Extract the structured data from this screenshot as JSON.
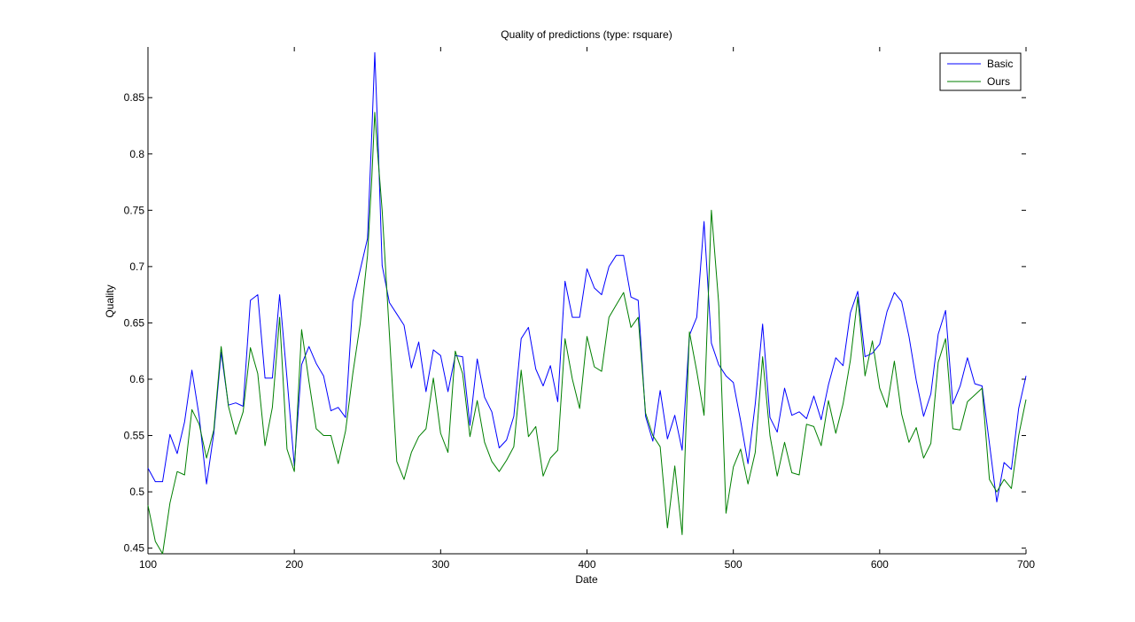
{
  "chart_data": {
    "type": "line",
    "title": "Quality of predictions (type: rsquare)",
    "xlabel": "Date",
    "ylabel": "Quality",
    "xlim": [
      100,
      700
    ],
    "ylim": [
      0.445,
      0.895
    ],
    "xticks": [
      100,
      200,
      300,
      400,
      500,
      600,
      700
    ],
    "xtick_labels": [
      "100",
      "200",
      "300",
      "400",
      "500",
      "600",
      "700"
    ],
    "yticks": [
      0.45,
      0.5,
      0.55,
      0.6,
      0.65,
      0.7,
      0.75,
      0.8,
      0.85
    ],
    "ytick_labels": [
      "0.45",
      "0.5",
      "0.55",
      "0.6",
      "0.65",
      "0.7",
      "0.75",
      "0.8",
      "0.85"
    ],
    "grid": false,
    "legend_position": "top-right",
    "x": [
      100,
      105,
      110,
      115,
      120,
      125,
      130,
      135,
      140,
      145,
      150,
      155,
      160,
      165,
      170,
      175,
      180,
      185,
      190,
      195,
      200,
      205,
      210,
      215,
      220,
      225,
      230,
      235,
      240,
      245,
      250,
      253,
      255,
      257,
      260,
      265,
      270,
      275,
      280,
      285,
      290,
      295,
      300,
      305,
      310,
      315,
      320,
      325,
      330,
      335,
      340,
      345,
      350,
      355,
      360,
      365,
      370,
      375,
      380,
      385,
      390,
      395,
      400,
      405,
      410,
      415,
      420,
      425,
      430,
      435,
      440,
      445,
      450,
      455,
      460,
      465,
      470,
      475,
      480,
      485,
      490,
      495,
      500,
      505,
      510,
      515,
      520,
      525,
      530,
      535,
      540,
      545,
      550,
      555,
      560,
      565,
      570,
      575,
      580,
      585,
      590,
      595,
      600,
      605,
      610,
      615,
      620,
      625,
      630,
      635,
      640,
      645,
      650,
      655,
      660,
      665,
      670,
      675,
      680,
      685,
      690,
      695,
      700
    ],
    "series": [
      {
        "name": "Basic",
        "color": "#0000ff",
        "values": [
          0.521,
          0.509,
          0.509,
          0.551,
          0.534,
          0.562,
          0.608,
          0.567,
          0.507,
          0.552,
          0.624,
          0.577,
          0.579,
          0.576,
          0.67,
          0.675,
          0.601,
          0.601,
          0.675,
          0.601,
          0.523,
          0.613,
          0.629,
          0.614,
          0.603,
          0.572,
          0.575,
          0.566,
          0.669,
          0.697,
          0.725,
          0.82,
          0.89,
          0.82,
          0.701,
          0.668,
          0.658,
          0.648,
          0.61,
          0.633,
          0.589,
          0.626,
          0.621,
          0.589,
          0.621,
          0.62,
          0.559,
          0.618,
          0.584,
          0.571,
          0.539,
          0.546,
          0.567,
          0.636,
          0.646,
          0.609,
          0.594,
          0.612,
          0.58,
          0.687,
          0.655,
          0.655,
          0.698,
          0.681,
          0.675,
          0.7,
          0.71,
          0.71,
          0.673,
          0.67,
          0.567,
          0.545,
          0.59,
          0.547,
          0.568,
          0.537,
          0.639,
          0.655,
          0.74,
          0.632,
          0.613,
          0.603,
          0.597,
          0.563,
          0.525,
          0.578,
          0.649,
          0.566,
          0.553,
          0.592,
          0.568,
          0.571,
          0.565,
          0.585,
          0.564,
          0.595,
          0.619,
          0.612,
          0.659,
          0.678,
          0.62,
          0.623,
          0.631,
          0.66,
          0.677,
          0.669,
          0.638,
          0.599,
          0.567,
          0.587,
          0.64,
          0.661,
          0.578,
          0.594,
          0.619,
          0.596,
          0.594,
          0.543,
          0.491,
          0.526,
          0.52,
          0.574,
          0.603
        ]
      },
      {
        "name": "Ours",
        "color": "#007f00",
        "values": [
          0.488,
          0.456,
          0.445,
          0.49,
          0.518,
          0.515,
          0.573,
          0.56,
          0.53,
          0.555,
          0.629,
          0.576,
          0.551,
          0.571,
          0.628,
          0.605,
          0.541,
          0.575,
          0.655,
          0.538,
          0.518,
          0.644,
          0.598,
          0.556,
          0.55,
          0.55,
          0.525,
          0.554,
          0.605,
          0.649,
          0.71,
          0.78,
          0.837,
          0.8,
          0.75,
          0.64,
          0.527,
          0.511,
          0.535,
          0.549,
          0.556,
          0.601,
          0.552,
          0.535,
          0.625,
          0.605,
          0.549,
          0.581,
          0.544,
          0.527,
          0.518,
          0.528,
          0.54,
          0.608,
          0.549,
          0.558,
          0.514,
          0.53,
          0.537,
          0.636,
          0.6,
          0.574,
          0.638,
          0.611,
          0.607,
          0.655,
          0.666,
          0.677,
          0.646,
          0.655,
          0.57,
          0.55,
          0.54,
          0.468,
          0.523,
          0.462,
          0.642,
          0.607,
          0.568,
          0.75,
          0.668,
          0.481,
          0.522,
          0.538,
          0.507,
          0.535,
          0.62,
          0.55,
          0.514,
          0.544,
          0.517,
          0.515,
          0.56,
          0.558,
          0.541,
          0.581,
          0.552,
          0.578,
          0.617,
          0.673,
          0.603,
          0.634,
          0.592,
          0.575,
          0.616,
          0.569,
          0.544,
          0.557,
          0.53,
          0.543,
          0.615,
          0.636,
          0.556,
          0.555,
          0.58,
          0.586,
          0.592,
          0.511,
          0.5,
          0.511,
          0.503,
          0.55,
          0.582
        ]
      }
    ]
  }
}
